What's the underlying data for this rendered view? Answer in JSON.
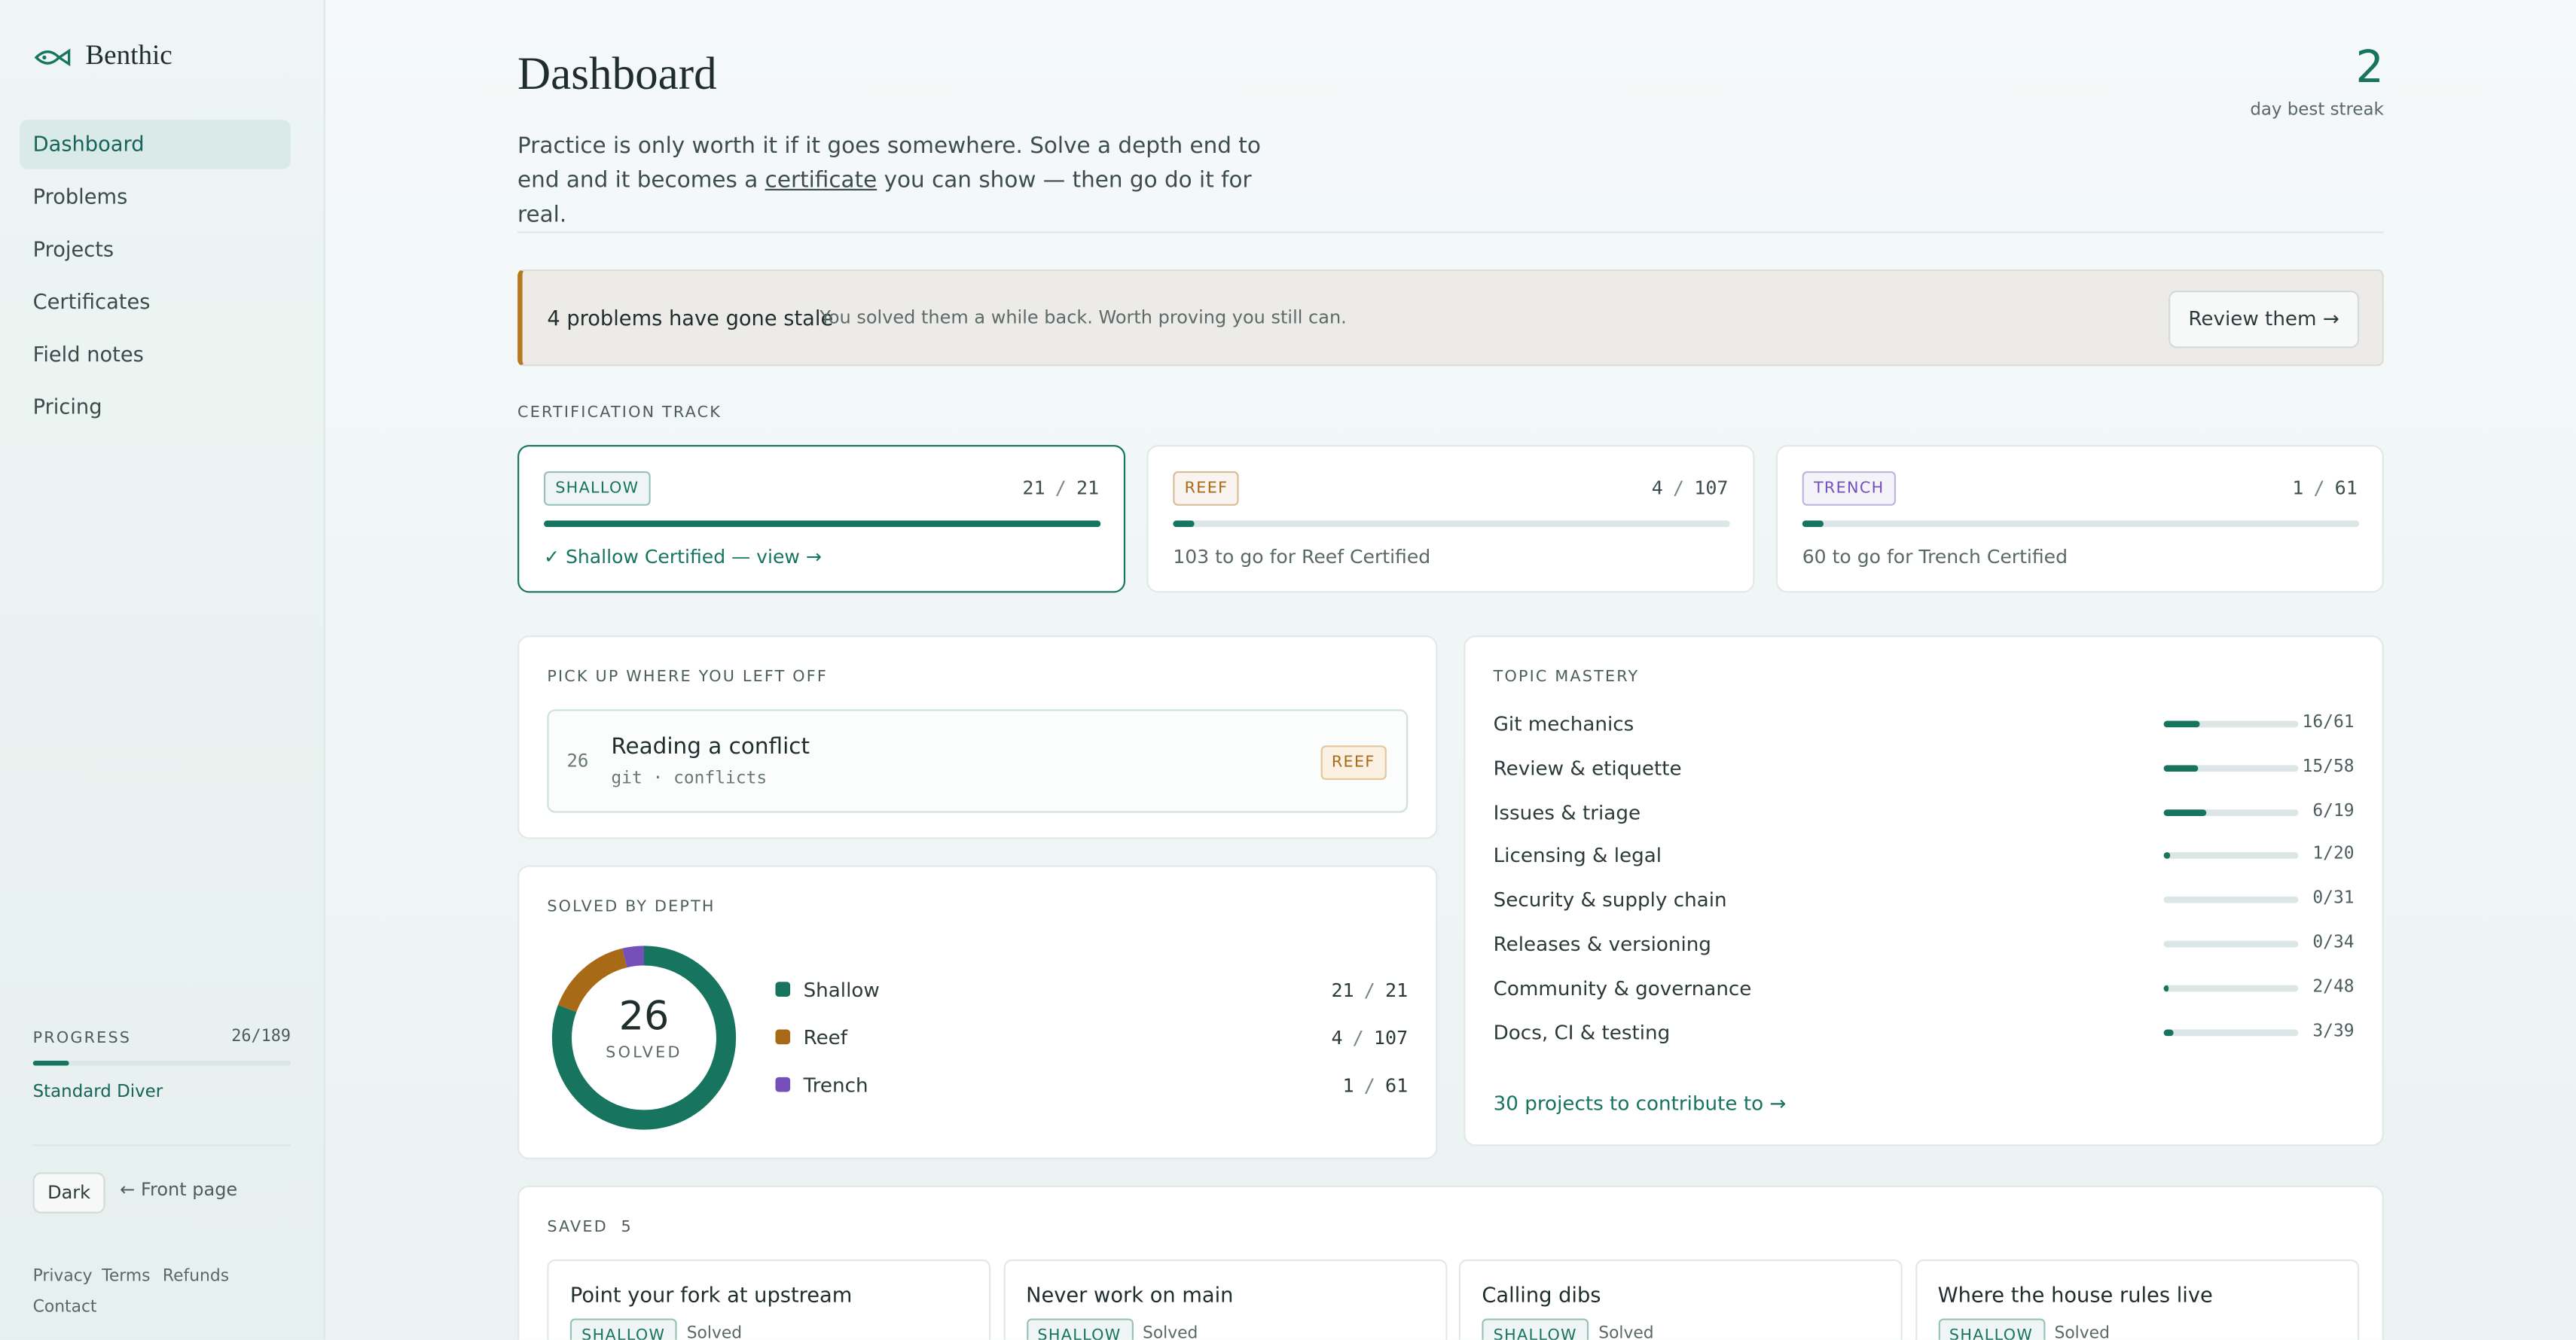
{
  "sidebar": {
    "brand": "Benthic",
    "nav": [
      "Dashboard",
      "Problems",
      "Projects",
      "Certificates",
      "Field notes",
      "Pricing"
    ],
    "active": 0,
    "progress": {
      "label": "PROGRESS",
      "done": 26,
      "separator": "/",
      "total": 189,
      "rank": "Standard Diver"
    },
    "theme_button": "Dark",
    "front_link": "← Front page",
    "footer_links": [
      "Privacy",
      "Terms",
      "Refunds",
      "Contact"
    ]
  },
  "header": {
    "title": "Dashboard",
    "intro_before": "Practice is only worth it if it goes somewhere. Solve a depth end to end and it becomes a ",
    "intro_link": "certificate",
    "intro_after": " you can show — then go do it for real.",
    "streak": 2,
    "streak_label": "day best streak"
  },
  "stale": {
    "title": "4 problems have gone stale",
    "text": "You solved them a while back. Worth proving you still can.",
    "button": "Review them →"
  },
  "track": {
    "heading": "CERTIFICATION TRACK",
    "separator": "/",
    "cards": [
      {
        "tag": "SHALLOW",
        "color": "#16745f",
        "done": 21,
        "total": 21,
        "note": "✓ Shallow Certified — view →"
      },
      {
        "tag": "REEF",
        "color": "#a86a16",
        "done": 4,
        "total": 107,
        "note": "103 to go for Reef Certified"
      },
      {
        "tag": "TRENCH",
        "color": "#7450b8",
        "done": 1,
        "total": 61,
        "note": "60 to go for Trench Certified"
      }
    ]
  },
  "resume": {
    "heading": "PICK UP WHERE YOU LEFT OFF",
    "number": 26,
    "title": "Reading a conflict",
    "meta": "git · conflicts",
    "tag": "REEF"
  },
  "depth": {
    "heading": "SOLVED BY DEPTH",
    "total": 26,
    "total_label": "SOLVED",
    "separator": "/",
    "rows": [
      {
        "name": "Shallow",
        "color": "#16745f",
        "done": 21,
        "total": 21
      },
      {
        "name": "Reef",
        "color": "#a86a16",
        "done": 4,
        "total": 107
      },
      {
        "name": "Trench",
        "color": "#7450b8",
        "done": 1,
        "total": 61
      }
    ]
  },
  "mastery": {
    "heading": "TOPIC MASTERY",
    "separator": "/",
    "topics": [
      {
        "name": "Git mechanics",
        "done": 16,
        "total": 61
      },
      {
        "name": "Review & etiquette",
        "done": 15,
        "total": 58
      },
      {
        "name": "Issues & triage",
        "done": 6,
        "total": 19
      },
      {
        "name": "Licensing & legal",
        "done": 1,
        "total": 20
      },
      {
        "name": "Security & supply chain",
        "done": 0,
        "total": 31
      },
      {
        "name": "Releases & versioning",
        "done": 0,
        "total": 34
      },
      {
        "name": "Community & governance",
        "done": 2,
        "total": 48
      },
      {
        "name": "Docs, CI & testing",
        "done": 3,
        "total": 39
      }
    ],
    "link": "30 projects to contribute to →"
  },
  "saved": {
    "heading": "SAVED",
    "count": 5,
    "items": [
      {
        "title": "Point your fork at upstream",
        "tag": "SHALLOW",
        "status": "Solved"
      },
      {
        "title": "Never work on main",
        "tag": "SHALLOW",
        "status": "Solved"
      },
      {
        "title": "Calling dibs",
        "tag": "SHALLOW",
        "status": "Solved"
      },
      {
        "title": "Where the house rules live",
        "tag": "SHALLOW",
        "status": "Solved"
      }
    ]
  }
}
